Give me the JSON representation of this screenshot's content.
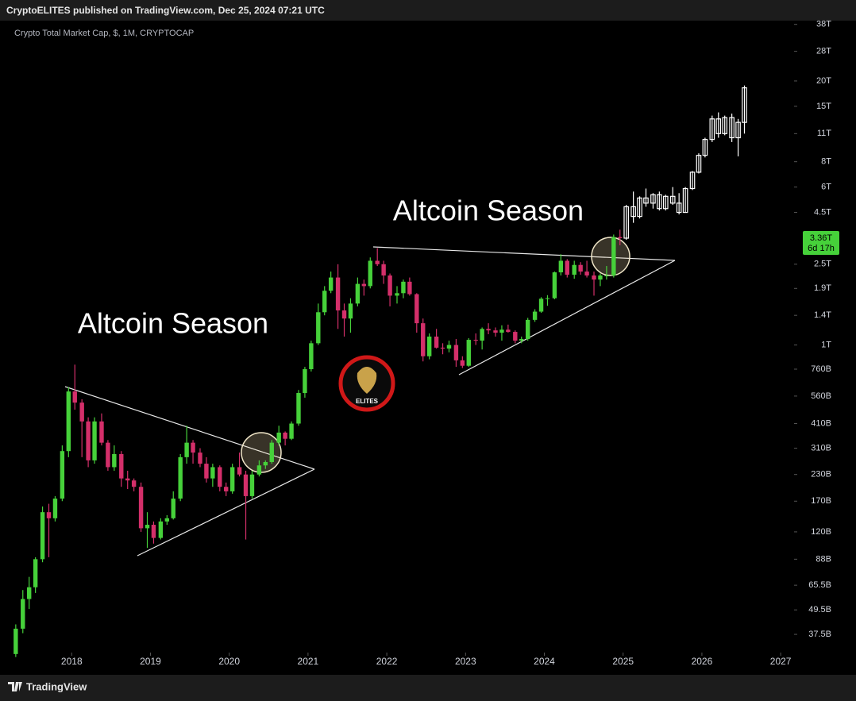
{
  "header": {
    "publish": "CryptoELITES published on TradingView.com, Dec 25, 2024 07:21 UTC",
    "logo_text": "ELITES",
    "footer": "TradingView"
  },
  "chart_data": {
    "type": "candlestick",
    "title": "Crypto Total Market Cap, $, 1M, CRYPTOCAP",
    "log_scale": true,
    "grid": false,
    "up_color": "#46d13a",
    "down_color": "#d42f6a",
    "xlim": [
      2017.09,
      2027.17
    ],
    "xticks": [
      2018,
      2019,
      2020,
      2021,
      2022,
      2023,
      2024,
      2025,
      2026,
      2027
    ],
    "ylim": [
      30.5,
      41100
    ],
    "yticks": [
      {
        "value": 37.5,
        "label": "37.5B"
      },
      {
        "value": 49.5,
        "label": "49.5B"
      },
      {
        "value": 65.5,
        "label": "65.5B"
      },
      {
        "value": 88,
        "label": "88B"
      },
      {
        "value": 120,
        "label": "120B"
      },
      {
        "value": 170,
        "label": "170B"
      },
      {
        "value": 230,
        "label": "230B"
      },
      {
        "value": 310,
        "label": "310B"
      },
      {
        "value": 410,
        "label": "410B"
      },
      {
        "value": 560,
        "label": "560B"
      },
      {
        "value": 760,
        "label": "760B"
      },
      {
        "value": 1000,
        "label": "1T"
      },
      {
        "value": 1400,
        "label": "1.4T"
      },
      {
        "value": 1900,
        "label": "1.9T"
      },
      {
        "value": 2500,
        "label": "2.5T"
      },
      {
        "value": 4500,
        "label": "4.5T"
      },
      {
        "value": 6000,
        "label": "6T"
      },
      {
        "value": 8000,
        "label": "8T"
      },
      {
        "value": 11000,
        "label": "11T"
      },
      {
        "value": 15000,
        "label": "15T"
      },
      {
        "value": 20000,
        "label": "20T"
      },
      {
        "value": 28000,
        "label": "28T"
      },
      {
        "value": 38000,
        "label": "38T"
      }
    ],
    "last_price": {
      "value": 3360,
      "label": "3.36T"
    },
    "countdown": "6d 17h",
    "annotations": [
      "Altcoin Season",
      "Altcoin Season"
    ],
    "candles": {
      "x": [
        2017.29,
        2017.38,
        2017.46,
        2017.54,
        2017.63,
        2017.71,
        2017.79,
        2017.88,
        2017.96,
        2018.04,
        2018.13,
        2018.21,
        2018.29,
        2018.38,
        2018.46,
        2018.54,
        2018.63,
        2018.71,
        2018.79,
        2018.88,
        2018.96,
        2019.04,
        2019.13,
        2019.21,
        2019.29,
        2019.38,
        2019.46,
        2019.54,
        2019.63,
        2019.71,
        2019.79,
        2019.88,
        2019.96,
        2020.04,
        2020.13,
        2020.21,
        2020.29,
        2020.38,
        2020.46,
        2020.54,
        2020.63,
        2020.71,
        2020.79,
        2020.88,
        2020.96,
        2021.04,
        2021.13,
        2021.21,
        2021.29,
        2021.38,
        2021.46,
        2021.54,
        2021.63,
        2021.71,
        2021.79,
        2021.88,
        2021.96,
        2022.04,
        2022.13,
        2022.21,
        2022.29,
        2022.38,
        2022.46,
        2022.54,
        2022.63,
        2022.71,
        2022.79,
        2022.88,
        2022.96,
        2023.04,
        2023.13,
        2023.21,
        2023.29,
        2023.38,
        2023.46,
        2023.54,
        2023.63,
        2023.71,
        2023.79,
        2023.88,
        2023.96,
        2024.04,
        2024.13,
        2024.21,
        2024.29,
        2024.38,
        2024.46,
        2024.54,
        2024.63,
        2024.71,
        2024.79,
        2024.88,
        2024.96
      ],
      "open": [
        30,
        40,
        56,
        64,
        88,
        150,
        140,
        175,
        300,
        590,
        520,
        420,
        270,
        420,
        330,
        250,
        290,
        220,
        215,
        200,
        125,
        130,
        112,
        135,
        140,
        175,
        280,
        330,
        295,
        260,
        220,
        250,
        200,
        190,
        250,
        230,
        180,
        230,
        255,
        265,
        330,
        370,
        345,
        410,
        580,
        760,
        1020,
        1450,
        1850,
        2150,
        1480,
        1350,
        1600,
        2000,
        1950,
        2600,
        2500,
        2200,
        1750,
        1800,
        2050,
        1780,
        1280,
        880,
        1100,
        970,
        960,
        1000,
        840,
        790,
        1060,
        1050,
        1200,
        1180,
        1150,
        1190,
        1160,
        1050,
        1070,
        1330,
        1460,
        1690,
        1700,
        2280,
        2600,
        2220,
        2480,
        2300,
        2200,
        2100,
        2200,
        2200,
        3400
      ],
      "high": [
        42,
        62,
        72,
        90,
        160,
        165,
        180,
        320,
        620,
        800,
        540,
        440,
        440,
        460,
        340,
        320,
        300,
        240,
        220,
        210,
        150,
        135,
        140,
        145,
        190,
        290,
        400,
        340,
        310,
        280,
        260,
        255,
        210,
        260,
        295,
        240,
        240,
        270,
        270,
        340,
        400,
        375,
        420,
        600,
        780,
        1050,
        1600,
        1950,
        2300,
        2500,
        1600,
        1700,
        2150,
        2100,
        2700,
        3000,
        2600,
        2250,
        1950,
        2100,
        2150,
        1800,
        1350,
        1140,
        1200,
        1020,
        1050,
        1070,
        880,
        1080,
        1140,
        1220,
        1280,
        1220,
        1250,
        1260,
        1180,
        1100,
        1360,
        1500,
        1720,
        1760,
        2300,
        2800,
        2650,
        2600,
        2560,
        2600,
        2300,
        2250,
        2450,
        3500,
        3700
      ],
      "low": [
        29,
        38,
        50,
        60,
        85,
        90,
        135,
        170,
        280,
        480,
        280,
        250,
        260,
        320,
        240,
        240,
        200,
        195,
        190,
        120,
        100,
        105,
        110,
        130,
        138,
        170,
        260,
        260,
        250,
        210,
        200,
        190,
        180,
        185,
        225,
        110,
        175,
        225,
        245,
        260,
        320,
        320,
        340,
        400,
        550,
        740,
        1000,
        1400,
        1800,
        1200,
        1100,
        1150,
        1550,
        1750,
        1900,
        2450,
        2000,
        1550,
        1600,
        1700,
        1750,
        1150,
        830,
        850,
        960,
        900,
        920,
        780,
        770,
        780,
        1000,
        950,
        1130,
        1100,
        1050,
        1150,
        1020,
        1020,
        1050,
        1300,
        1440,
        1560,
        1680,
        2200,
        2150,
        2120,
        2220,
        2150,
        1750,
        1950,
        2100,
        2150,
        3100
      ],
      "close": [
        40,
        56,
        64,
        88,
        150,
        140,
        175,
        300,
        590,
        520,
        420,
        270,
        420,
        330,
        250,
        290,
        220,
        215,
        200,
        125,
        130,
        112,
        135,
        140,
        175,
        280,
        330,
        295,
        260,
        220,
        250,
        200,
        190,
        250,
        230,
        180,
        230,
        255,
        265,
        330,
        370,
        345,
        410,
        580,
        760,
        1020,
        1450,
        1850,
        2150,
        1480,
        1350,
        1600,
        2000,
        1950,
        2600,
        2500,
        2200,
        1750,
        1800,
        2050,
        1780,
        1280,
        880,
        1100,
        970,
        960,
        1000,
        840,
        790,
        1060,
        1050,
        1200,
        1180,
        1150,
        1190,
        1160,
        1050,
        1070,
        1330,
        1460,
        1690,
        1700,
        2280,
        2600,
        2220,
        2480,
        2300,
        2200,
        2100,
        2200,
        2200,
        3400,
        3360
      ]
    },
    "projection": {
      "color": "#ffffff",
      "x": [
        2025.04,
        2025.13,
        2025.21,
        2025.29,
        2025.38,
        2025.46,
        2025.54,
        2025.63,
        2025.71,
        2025.79,
        2025.88,
        2025.96,
        2026.04,
        2026.13,
        2026.21,
        2026.29,
        2026.38,
        2026.46,
        2026.54
      ],
      "open": [
        3360,
        4800,
        4300,
        5300,
        5000,
        5500,
        4700,
        5400,
        5000,
        4500,
        5900,
        7100,
        8600,
        10300,
        13000,
        11000,
        13200,
        10500,
        12500
      ],
      "high": [
        4900,
        5700,
        5400,
        5900,
        5600,
        5700,
        5500,
        6000,
        5600,
        6000,
        7200,
        8800,
        10500,
        13500,
        14000,
        13500,
        13800,
        13000,
        19000
      ],
      "low": [
        3300,
        4000,
        4200,
        4800,
        4700,
        4600,
        4600,
        4900,
        4400,
        4500,
        5800,
        7000,
        8400,
        10000,
        10500,
        10800,
        10000,
        8500,
        11000
      ],
      "close": [
        4800,
        4300,
        5300,
        5000,
        5500,
        4700,
        5400,
        5000,
        4500,
        5900,
        7100,
        8600,
        10300,
        13000,
        11000,
        13200,
        10500,
        12500,
        18500
      ]
    }
  }
}
